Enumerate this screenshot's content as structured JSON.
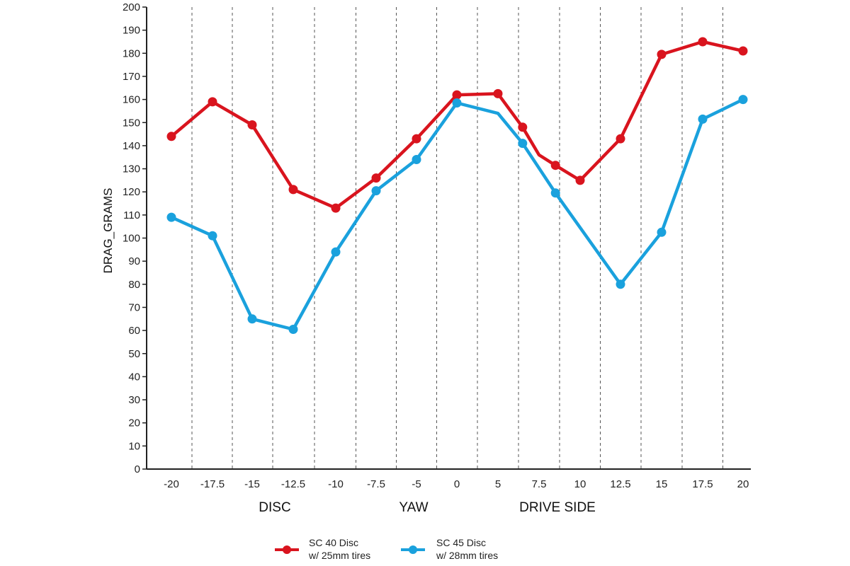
{
  "chart_data": {
    "type": "line",
    "xlabel": "YAW",
    "ylabel": "DRAG_GRAMS",
    "section_labels": {
      "left": "DISC",
      "center": "YAW",
      "right": "DRIVE SIDE"
    },
    "ylim": [
      0,
      200
    ],
    "y_ticks": [
      "0",
      "10",
      "20",
      "30",
      "40",
      "50",
      "60",
      "70",
      "80",
      "90",
      "100",
      "110",
      "120",
      "130",
      "140",
      "150",
      "160",
      "170",
      "180",
      "190",
      "200"
    ],
    "x_tick_labels": [
      "-20",
      "-17.5",
      "-15",
      "-12.5",
      "-10",
      "-7.5",
      "-5",
      "0",
      "5",
      "7.5",
      "10",
      "12.5",
      "15",
      "17.5",
      "20"
    ],
    "grid": "vertical dashed",
    "legend_position": "bottom",
    "series": [
      {
        "name": "SC 40 Disc",
        "name_line2": "w/ 25mm tires",
        "color": "#d9141e",
        "points": [
          [
            -20,
            144
          ],
          [
            -17.5,
            159
          ],
          [
            -15,
            149
          ],
          [
            -12.5,
            121
          ],
          [
            -10,
            113
          ],
          [
            -7.5,
            126
          ],
          [
            -5,
            143
          ],
          [
            0,
            162
          ],
          [
            5,
            162.5
          ],
          [
            6.5,
            148
          ],
          [
            7.5,
            136
          ],
          [
            8.5,
            131.5
          ],
          [
            10,
            125
          ],
          [
            12.5,
            143
          ],
          [
            15,
            179.5
          ],
          [
            17.5,
            185
          ],
          [
            20,
            181
          ]
        ],
        "marker_x": [
          -20,
          -17.5,
          -15,
          -12.5,
          -10,
          -7.5,
          -5,
          0,
          5,
          6.5,
          8.5,
          10,
          12.5,
          15,
          17.5,
          20
        ]
      },
      {
        "name": "SC 45 Disc",
        "name_line2": "w/ 28mm tires",
        "color": "#1aa1dd",
        "points": [
          [
            -20,
            109
          ],
          [
            -17.5,
            101
          ],
          [
            -15,
            65
          ],
          [
            -12.5,
            60.5
          ],
          [
            -10,
            94
          ],
          [
            -7.5,
            120.5
          ],
          [
            -5,
            134
          ],
          [
            0,
            158.5
          ],
          [
            5,
            154
          ],
          [
            6.5,
            141
          ],
          [
            8.5,
            119.5
          ],
          [
            12.5,
            80
          ],
          [
            15,
            102.5
          ],
          [
            17.5,
            151.5
          ],
          [
            20,
            160
          ]
        ],
        "marker_x": [
          -20,
          -17.5,
          -15,
          -12.5,
          -10,
          -7.5,
          -5,
          0,
          6.5,
          8.5,
          12.5,
          15,
          17.5,
          20
        ]
      }
    ]
  }
}
